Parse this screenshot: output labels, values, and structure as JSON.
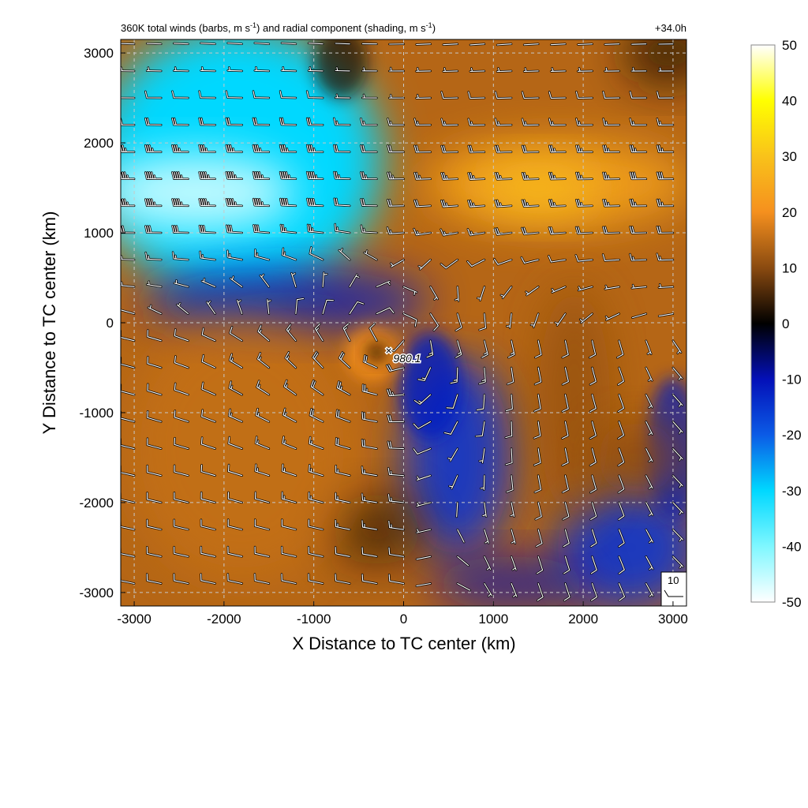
{
  "chart_data": {
    "type": "heatmap",
    "title": "360K total winds (barbs, m s⁻¹) and radial component (shading, m s⁻¹)",
    "title_parts": {
      "p1": "360K total winds (barbs, m s",
      "sup1": "-1",
      "p2": ") and radial component (shading, m s",
      "sup2": "-1",
      "p3": ")"
    },
    "time_label": "+34.0h",
    "xlabel": "X Distance to TC center (km)",
    "ylabel": "Y Distance to TC center (km)",
    "xlim": [
      -3150,
      3150
    ],
    "ylim": [
      -3150,
      3150
    ],
    "x_ticks": [
      -3000,
      -2000,
      -1000,
      0,
      1000,
      2000,
      3000
    ],
    "y_ticks": [
      3000,
      2000,
      1000,
      0,
      -1000,
      -2000,
      -3000
    ],
    "grid": true,
    "colorbar": {
      "min": -50,
      "max": 50,
      "ticks": [
        50,
        40,
        30,
        20,
        10,
        0,
        -10,
        -20,
        -30,
        -40,
        -50
      ],
      "stops": [
        {
          "value": -50,
          "color": "#ffffff"
        },
        {
          "value": -40,
          "color": "#7ff7ff"
        },
        {
          "value": -30,
          "color": "#00d8ff"
        },
        {
          "value": -20,
          "color": "#0b5be6"
        },
        {
          "value": -10,
          "color": "#0410b8"
        },
        {
          "value": 0,
          "color": "#000000"
        },
        {
          "value": 10,
          "color": "#8a4a10"
        },
        {
          "value": 20,
          "color": "#f5901e"
        },
        {
          "value": 30,
          "color": "#f9c21a"
        },
        {
          "value": 40,
          "color": "#ffff00"
        },
        {
          "value": 50,
          "color": "#ffffff"
        }
      ]
    },
    "shading_regions": [
      {
        "name": "orange-background",
        "value": 14,
        "x": 0,
        "y": 0,
        "rx": 99999,
        "ry": 99999,
        "rot": 0,
        "opacity": 1
      },
      {
        "name": "inflow-northwest",
        "value": -30,
        "x": -1850,
        "y": 1800,
        "rx": 1600,
        "ry": 1500,
        "rot": 0,
        "opacity": 1
      },
      {
        "name": "inflow-northwest-core",
        "value": -46,
        "x": -2300,
        "y": 1450,
        "rx": 1100,
        "ry": 420,
        "rot": 0,
        "opacity": 0.95
      },
      {
        "name": "inflow-northwest-edge",
        "value": -12,
        "x": -1300,
        "y": 250,
        "rx": 1600,
        "ry": 350,
        "rot": 0,
        "opacity": 0.8
      },
      {
        "name": "outflow-northeast",
        "value": 24,
        "x": 1700,
        "y": 1550,
        "rx": 1500,
        "ry": 500,
        "rot": 0,
        "opacity": 0.85
      },
      {
        "name": "outflow-northeast-core",
        "value": 29,
        "x": 1500,
        "y": 1500,
        "rx": 700,
        "ry": 300,
        "rot": 0,
        "opacity": 0.8
      },
      {
        "name": "dark-top-right",
        "value": 3,
        "x": 2950,
        "y": 3000,
        "rx": 500,
        "ry": 350,
        "rot": 0,
        "opacity": 0.85
      },
      {
        "name": "dark-top-seam",
        "value": 2,
        "x": -700,
        "y": 2900,
        "rx": 300,
        "ry": 400,
        "rot": 0,
        "opacity": 0.7
      },
      {
        "name": "inflow-southcentral",
        "value": -15,
        "x": 600,
        "y": -1500,
        "rx": 600,
        "ry": 1100,
        "rot": 0,
        "opacity": 0.9
      },
      {
        "name": "inflow-south-channel",
        "value": -12,
        "x": 300,
        "y": -700,
        "rx": 350,
        "ry": 600,
        "rot": 0,
        "opacity": 0.8
      },
      {
        "name": "inflow-southeast",
        "value": -15,
        "x": 2500,
        "y": -2500,
        "rx": 800,
        "ry": 700,
        "rot": 0,
        "opacity": 0.9
      },
      {
        "name": "inflow-east-strip",
        "value": -12,
        "x": 3000,
        "y": -1400,
        "rx": 300,
        "ry": 800,
        "rot": 0,
        "opacity": 0.7
      },
      {
        "name": "inflow-bottom-strip",
        "value": -10,
        "x": 1200,
        "y": -2900,
        "rx": 900,
        "ry": 300,
        "rot": 0,
        "opacity": 0.7
      },
      {
        "name": "outflow-east-tongue",
        "value": 11,
        "x": 1900,
        "y": -900,
        "rx": 400,
        "ry": 1300,
        "rot": 0,
        "opacity": 0.8
      },
      {
        "name": "outflow-southeast-swirl",
        "value": 10,
        "x": 2600,
        "y": -1500,
        "rx": 450,
        "ry": 400,
        "rot": 0,
        "opacity": 0.8
      },
      {
        "name": "dark-south-center",
        "value": 2,
        "x": -300,
        "y": -2300,
        "rx": 500,
        "ry": 400,
        "rot": 0,
        "opacity": 0.6
      },
      {
        "name": "outflow-southwest",
        "value": 16,
        "x": -1800,
        "y": -1400,
        "rx": 1300,
        "ry": 1500,
        "rot": 0,
        "opacity": 0.6
      },
      {
        "name": "eye-ring-outflow",
        "value": 20,
        "x": -350,
        "y": -350,
        "rx": 300,
        "ry": 300,
        "rot": 0,
        "opacity": 0.9
      },
      {
        "name": "eye-core",
        "value": 4,
        "x": -300,
        "y": -330,
        "rx": 120,
        "ry": 120,
        "rot": 0,
        "opacity": 0.9
      }
    ],
    "barb_grid": {
      "x_start": -3000,
      "x_end": 3000,
      "x_step": 300,
      "y_start": 3100,
      "y_end": -3000,
      "y_step": -300,
      "reference_speed": 10
    },
    "storm_center": {
      "x": -150,
      "y": -300,
      "marker": "×",
      "label": "980.1"
    },
    "legend": {
      "speed_label": "10"
    }
  }
}
